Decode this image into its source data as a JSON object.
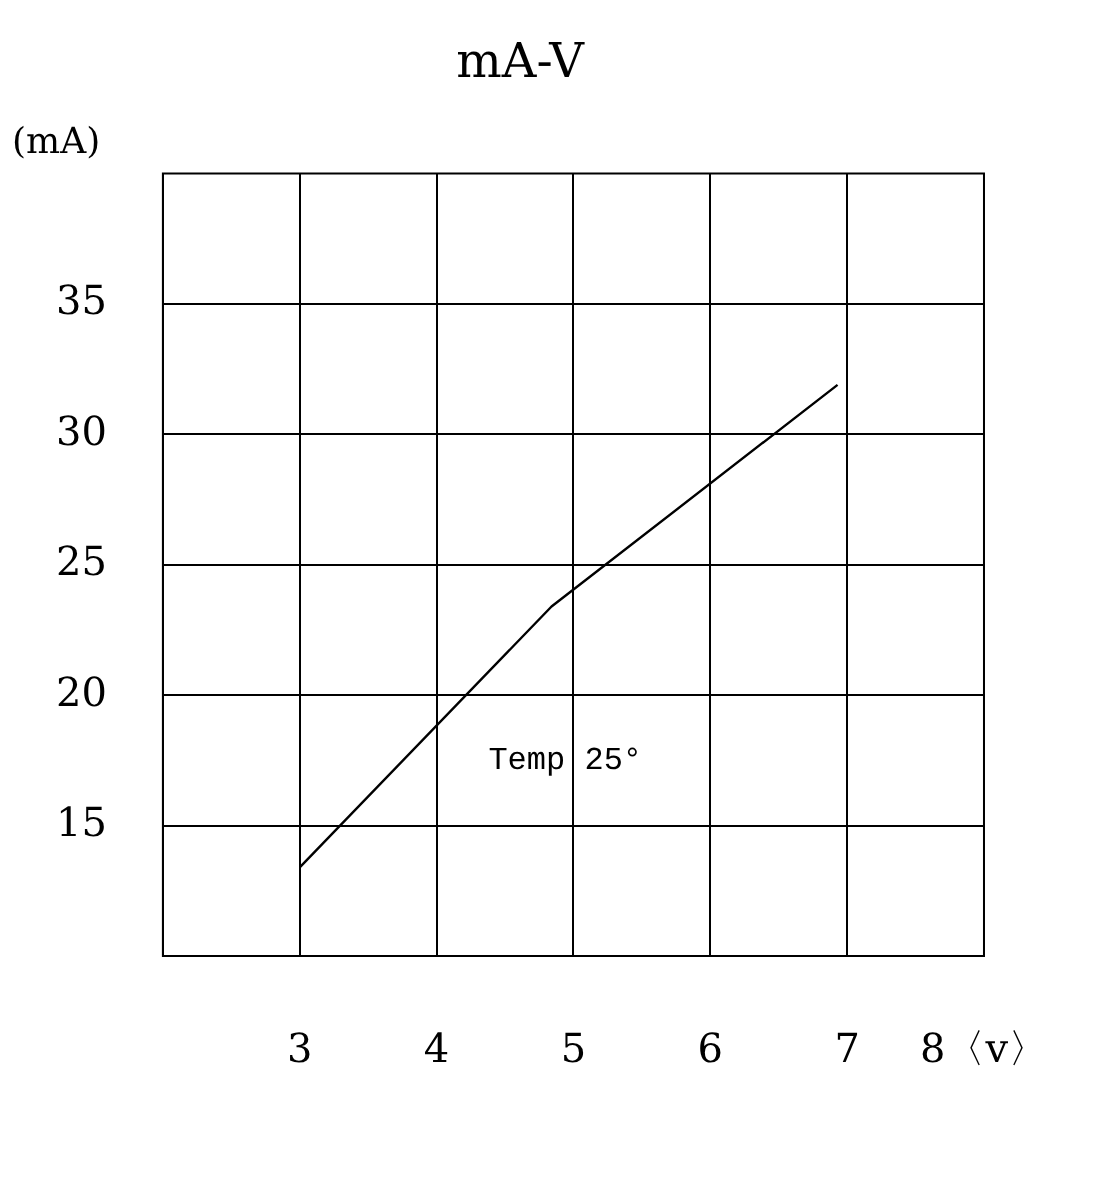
{
  "chart_data": {
    "type": "line",
    "title": "mA-V",
    "ylabel": "(mA)",
    "x": [
      3,
      4.84,
      6.93
    ],
    "series": [
      {
        "color": "#000000",
        "values": [
          13.4,
          23.4,
          31.9
        ]
      }
    ],
    "xlim": [
      2,
      8
    ],
    "xticks": [
      3,
      4,
      5,
      6,
      7,
      {
        "value": 8,
        "label": "8〈v〉"
      }
    ],
    "ylim": [
      10,
      40
    ],
    "yticks": [
      15,
      20,
      25,
      30,
      35
    ],
    "grid": true,
    "legend": false,
    "marker": "none",
    "line_style": "solid",
    "annotations": [
      "Temp 25°"
    ]
  }
}
